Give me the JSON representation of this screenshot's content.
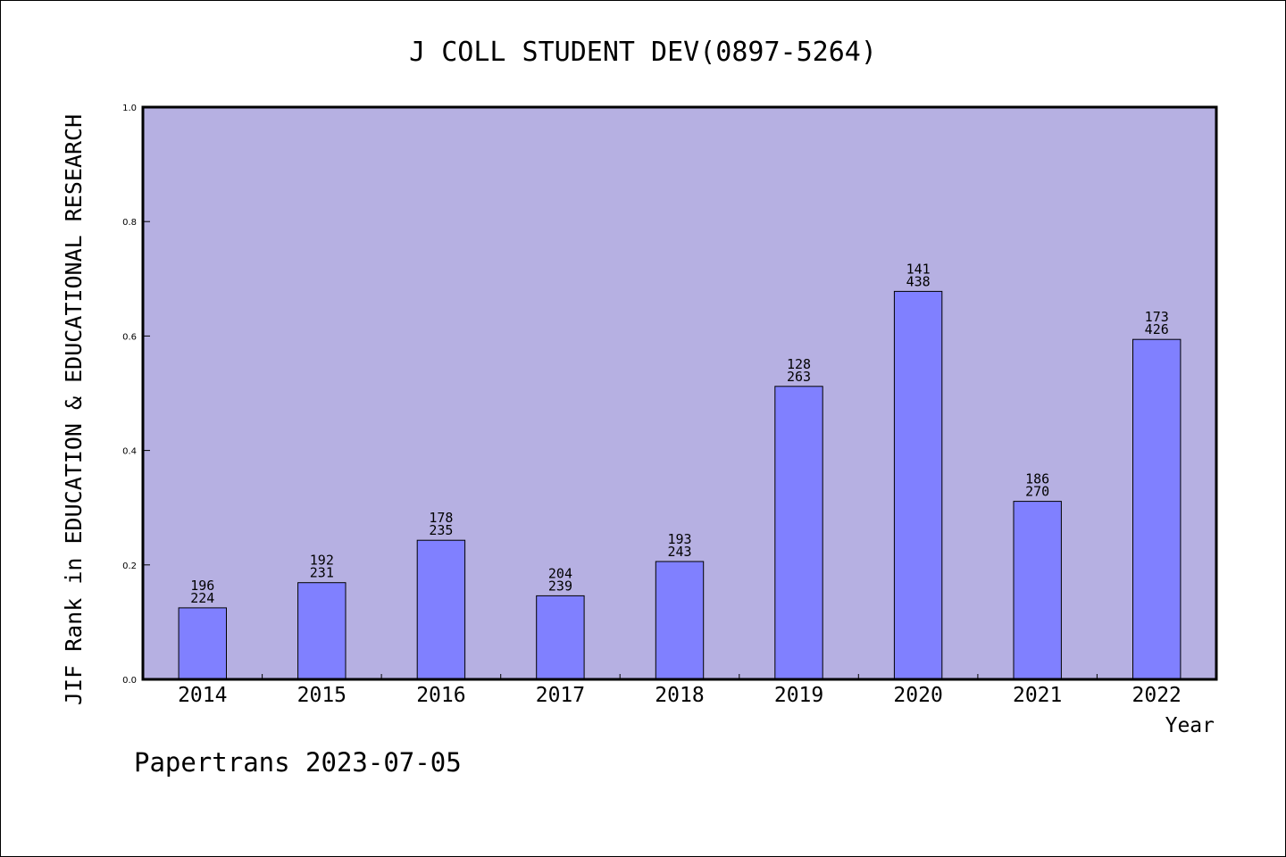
{
  "chart_data": {
    "type": "bar",
    "title": "J COLL STUDENT DEV(0897-5264)",
    "xlabel": "Year",
    "ylabel": "JIF Rank in EDUCATION & EDUCATIONAL RESEARCH",
    "categories": [
      "2014",
      "2015",
      "2016",
      "2017",
      "2018",
      "2019",
      "2020",
      "2021",
      "2022"
    ],
    "values": [
      0.125,
      0.169,
      0.243,
      0.146,
      0.206,
      0.512,
      0.678,
      0.311,
      0.594
    ],
    "rank": [
      "196",
      "192",
      "178",
      "204",
      "193",
      "128",
      "141",
      "186",
      "173"
    ],
    "total": [
      "224",
      "231",
      "235",
      "239",
      "243",
      "263",
      "438",
      "270",
      "426"
    ],
    "ylim": [
      0,
      1.0
    ],
    "yticks": [
      "0.0",
      "0.2",
      "0.4",
      "0.6",
      "0.8",
      "1.0"
    ],
    "grid": false,
    "plot_background": "#b6b0e2",
    "bar_color": "#8080ff",
    "edge_color": "#000000"
  },
  "footer": "Papertrans 2023-07-05"
}
